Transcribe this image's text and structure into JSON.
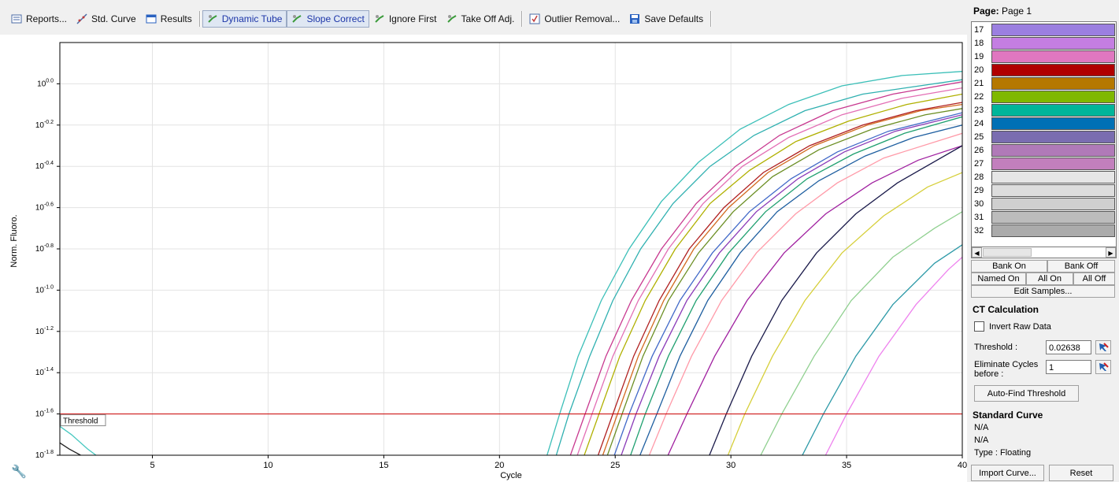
{
  "toolbar": {
    "items": [
      {
        "label": "Reports...",
        "icon": "reports-icon",
        "on": false
      },
      {
        "label": "Std. Curve",
        "icon": "std-curve-icon",
        "on": false
      },
      {
        "label": "Results",
        "icon": "results-icon",
        "on": false
      },
      {
        "label": "Dynamic Tube",
        "icon": "dynamic-tube-icon",
        "on": true
      },
      {
        "label": "Slope Correct",
        "icon": "slope-correct-icon",
        "on": true
      },
      {
        "label": "Ignore First",
        "icon": "ignore-first-icon",
        "on": false
      },
      {
        "label": "Take Off Adj.",
        "icon": "take-off-adj-icon",
        "on": false
      },
      {
        "label": "Outlier Removal...",
        "icon": "outlier-removal-icon",
        "on": false
      },
      {
        "label": "Save Defaults",
        "icon": "save-icon",
        "on": false
      }
    ]
  },
  "chart_data": {
    "type": "line",
    "title": "",
    "xlabel": "Cycle",
    "ylabel": "Norm. Fluoro.",
    "x_ticks": [
      "5",
      "10",
      "15",
      "20",
      "25",
      "30",
      "35",
      "40"
    ],
    "y_ticks": [
      "10^-1.8",
      "10^-1.6",
      "10^-1.4",
      "10^-1.2",
      "10^-1.0",
      "10^-0.8",
      "10^-0.6",
      "10^-0.4",
      "10^-0.2",
      "10^0.0"
    ],
    "y_scale": "log",
    "xlim": [
      1,
      40
    ],
    "ylim_log10": [
      -1.8,
      0.2
    ],
    "grid": true,
    "threshold": {
      "label": "Threshold",
      "log10_value": -1.6,
      "color": "#cc0000"
    },
    "series": [
      {
        "color": "#3bbfb8",
        "x": [
          22.0,
          22.6,
          23.4,
          24.4,
          25.6,
          27.0,
          28.6,
          30.4,
          32.5,
          34.8,
          37.4,
          40.0
        ],
        "log10_y": [
          -1.82,
          -1.6,
          -1.32,
          -1.05,
          -0.8,
          -0.57,
          -0.38,
          -0.22,
          -0.1,
          -0.01,
          0.04,
          0.06
        ]
      },
      {
        "color": "#2fb0b0",
        "x": [
          22.4,
          23.0,
          23.9,
          24.9,
          26.1,
          27.5,
          29.1,
          31.0,
          33.2,
          35.7,
          40.0
        ],
        "log10_y": [
          -1.82,
          -1.6,
          -1.32,
          -1.05,
          -0.8,
          -0.58,
          -0.4,
          -0.25,
          -0.13,
          -0.05,
          0.02
        ]
      },
      {
        "color": "#c8388f",
        "x": [
          23.0,
          23.7,
          24.6,
          25.7,
          27.0,
          28.5,
          30.2,
          32.1,
          34.4,
          37.0,
          40.0
        ],
        "log10_y": [
          -1.82,
          -1.6,
          -1.32,
          -1.05,
          -0.8,
          -0.58,
          -0.4,
          -0.25,
          -0.13,
          -0.05,
          0.01
        ]
      },
      {
        "color": "#e36fb5",
        "x": [
          23.3,
          24.0,
          24.9,
          26.0,
          27.3,
          28.8,
          30.5,
          32.5,
          34.8,
          37.4,
          40.0
        ],
        "log10_y": [
          -1.82,
          -1.6,
          -1.32,
          -1.05,
          -0.8,
          -0.58,
          -0.4,
          -0.26,
          -0.15,
          -0.07,
          -0.02
        ]
      },
      {
        "color": "#b0b000",
        "x": [
          23.6,
          24.3,
          25.2,
          26.3,
          27.6,
          29.1,
          30.8,
          32.8,
          35.1,
          37.6,
          40.0
        ],
        "log10_y": [
          -1.82,
          -1.6,
          -1.32,
          -1.05,
          -0.8,
          -0.58,
          -0.42,
          -0.28,
          -0.18,
          -0.1,
          -0.05
        ]
      },
      {
        "color": "#b02020",
        "x": [
          24.2,
          24.9,
          25.8,
          26.9,
          28.2,
          29.7,
          31.4,
          33.4,
          35.7,
          38.0,
          40.0
        ],
        "log10_y": [
          -1.82,
          -1.6,
          -1.32,
          -1.05,
          -0.8,
          -0.6,
          -0.43,
          -0.3,
          -0.2,
          -0.13,
          -0.09
        ]
      },
      {
        "color": "#d2691e",
        "x": [
          24.4,
          25.1,
          26.0,
          27.1,
          28.4,
          29.9,
          31.6,
          33.6,
          35.9,
          38.2,
          40.0
        ],
        "log10_y": [
          -1.82,
          -1.6,
          -1.32,
          -1.05,
          -0.8,
          -0.6,
          -0.43,
          -0.3,
          -0.2,
          -0.13,
          -0.1
        ]
      },
      {
        "color": "#6b8e23",
        "x": [
          24.6,
          25.3,
          26.2,
          27.3,
          28.6,
          30.1,
          31.8,
          33.8,
          36.1,
          38.4,
          40.0
        ],
        "log10_y": [
          -1.82,
          -1.6,
          -1.32,
          -1.05,
          -0.82,
          -0.62,
          -0.45,
          -0.32,
          -0.22,
          -0.15,
          -0.12
        ]
      },
      {
        "color": "#4169c8",
        "x": [
          24.9,
          25.6,
          26.6,
          27.8,
          29.2,
          30.8,
          32.6,
          34.6,
          36.8,
          40.0
        ],
        "log10_y": [
          -1.82,
          -1.6,
          -1.32,
          -1.05,
          -0.82,
          -0.62,
          -0.46,
          -0.33,
          -0.23,
          -0.14
        ]
      },
      {
        "color": "#8a3ab8",
        "x": [
          25.2,
          25.9,
          26.9,
          28.1,
          29.5,
          31.1,
          32.9,
          34.9,
          37.1,
          40.0
        ],
        "log10_y": [
          -1.82,
          -1.6,
          -1.32,
          -1.05,
          -0.82,
          -0.62,
          -0.46,
          -0.33,
          -0.23,
          -0.15
        ]
      },
      {
        "color": "#20a070",
        "x": [
          25.6,
          26.3,
          27.3,
          28.5,
          29.9,
          31.5,
          33.3,
          35.3,
          37.5,
          40.0
        ],
        "log10_y": [
          -1.82,
          -1.6,
          -1.32,
          -1.05,
          -0.82,
          -0.62,
          -0.46,
          -0.34,
          -0.24,
          -0.16
        ]
      },
      {
        "color": "#1f5fa0",
        "x": [
          26.0,
          26.8,
          27.8,
          29.0,
          30.4,
          32.0,
          33.8,
          35.8,
          37.9,
          40.0
        ],
        "log10_y": [
          -1.82,
          -1.6,
          -1.32,
          -1.05,
          -0.82,
          -0.62,
          -0.47,
          -0.35,
          -0.26,
          -0.2
        ]
      },
      {
        "color": "#ff9aa8",
        "x": [
          26.4,
          27.2,
          28.3,
          29.6,
          31.1,
          32.8,
          34.6,
          36.6,
          40.0
        ],
        "log10_y": [
          -1.82,
          -1.6,
          -1.32,
          -1.05,
          -0.82,
          -0.63,
          -0.48,
          -0.36,
          -0.24
        ]
      },
      {
        "color": "#a020a0",
        "x": [
          27.2,
          28.1,
          29.3,
          30.7,
          32.3,
          34.1,
          36.1,
          38.1,
          40.0
        ],
        "log10_y": [
          -1.82,
          -1.6,
          -1.32,
          -1.05,
          -0.82,
          -0.63,
          -0.48,
          -0.37,
          -0.3
        ]
      },
      {
        "color": "#1a1a4a",
        "x": [
          29.0,
          29.8,
          30.9,
          32.2,
          33.7,
          35.4,
          37.2,
          40.0
        ],
        "log10_y": [
          -1.82,
          -1.6,
          -1.32,
          -1.05,
          -0.82,
          -0.63,
          -0.48,
          -0.3
        ]
      },
      {
        "color": "#d6cf3a",
        "x": [
          29.8,
          30.6,
          31.8,
          33.2,
          34.8,
          36.6,
          38.5,
          40.0
        ],
        "log10_y": [
          -1.82,
          -1.6,
          -1.32,
          -1.05,
          -0.82,
          -0.64,
          -0.5,
          -0.43
        ]
      },
      {
        "color": "#90d090",
        "x": [
          31.2,
          32.2,
          33.6,
          35.2,
          37.0,
          38.8,
          40.0
        ],
        "log10_y": [
          -1.82,
          -1.6,
          -1.32,
          -1.05,
          -0.84,
          -0.7,
          -0.62
        ]
      },
      {
        "color": "#2e9aa8",
        "x": [
          33.0,
          34.0,
          35.4,
          37.0,
          38.8,
          40.0
        ],
        "log10_y": [
          -1.82,
          -1.6,
          -1.32,
          -1.07,
          -0.87,
          -0.78
        ]
      },
      {
        "color": "#ee82ee",
        "x": [
          34.0,
          35.0,
          36.4,
          38.0,
          39.4,
          40.0
        ],
        "log10_y": [
          -1.82,
          -1.6,
          -1.32,
          -1.07,
          -0.9,
          -0.84
        ]
      },
      {
        "color": "#48c8c0",
        "x": [
          1.0,
          1.5,
          2.2,
          2.8
        ],
        "log10_y": [
          -1.66,
          -1.7,
          -1.77,
          -1.82
        ]
      },
      {
        "color": "#222222",
        "x": [
          1.0,
          1.4,
          1.9,
          2.3
        ],
        "log10_y": [
          -1.74,
          -1.77,
          -1.8,
          -1.82
        ]
      }
    ]
  },
  "right_panel": {
    "page_prefix": "Page:",
    "page_value": "Page 1",
    "samples": [
      {
        "num": "17",
        "color": "#9b7fe0"
      },
      {
        "num": "18",
        "color": "#c47ee2"
      },
      {
        "num": "19",
        "color": "#e077c0"
      },
      {
        "num": "20",
        "color": "#b00000"
      },
      {
        "num": "21",
        "color": "#b57800"
      },
      {
        "num": "22",
        "color": "#7fb800"
      },
      {
        "num": "23",
        "color": "#00b59a"
      },
      {
        "num": "24",
        "color": "#0070b5"
      },
      {
        "num": "25",
        "color": "#7a6db0"
      },
      {
        "num": "26",
        "color": "#b07ab8"
      },
      {
        "num": "27",
        "color": "#c27fbd"
      },
      {
        "num": "28",
        "color": "#e6e6e6"
      },
      {
        "num": "29",
        "color": "#dddddd"
      },
      {
        "num": "30",
        "color": "#cfcfcf"
      },
      {
        "num": "31",
        "color": "#bcbcbc"
      },
      {
        "num": "32",
        "color": "#ababab"
      }
    ],
    "bank_on": "Bank On",
    "bank_off": "Bank Off",
    "named_on": "Named On",
    "all_on": "All On",
    "all_off": "All Off",
    "edit_samples": "Edit Samples...",
    "ct_title": "CT Calculation",
    "invert_label": "Invert Raw Data",
    "threshold_label": "Threshold :",
    "threshold_value": "0.02638",
    "eliminate_label_1": "Eliminate Cycles",
    "eliminate_label_2": "before :",
    "eliminate_value": "1",
    "auto_find": "Auto-Find Threshold",
    "std_title": "Standard Curve",
    "std_line_1": "N/A",
    "std_line_2": "N/A",
    "std_type": "Type : Floating",
    "import_curve": "Import Curve...",
    "reset": "Reset"
  }
}
